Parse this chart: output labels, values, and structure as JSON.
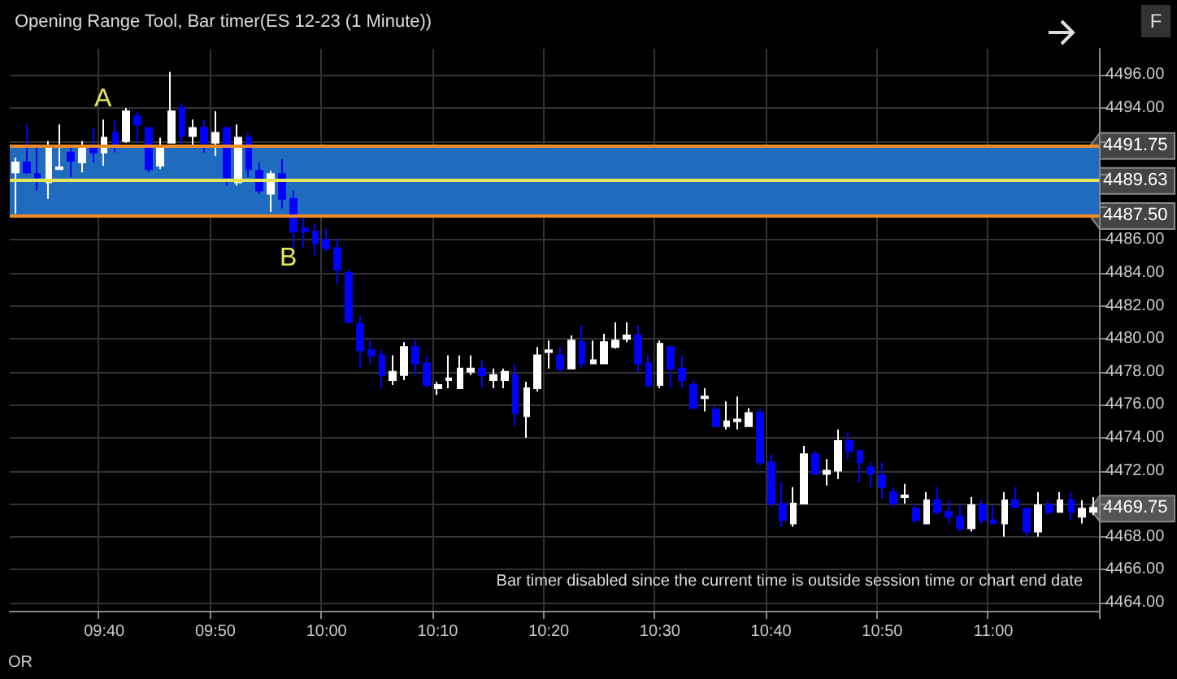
{
  "chart_data": {
    "type": "candlestick",
    "title": "Opening Range Tool, Bar timer(ES 12-23 (1 Minute))",
    "categories": [
      null,
      null,
      null,
      null,
      null,
      null,
      null,
      null,
      "09:40",
      null,
      null,
      null,
      null,
      null,
      null,
      null,
      null,
      null,
      "09:50",
      null,
      null,
      null,
      null,
      null,
      null,
      null,
      null,
      null,
      "10:00",
      null,
      null,
      null,
      null,
      null,
      null,
      null,
      null,
      null,
      "10:10",
      null,
      null,
      null,
      null,
      null,
      null,
      null,
      null,
      null,
      "10:20",
      null,
      null,
      null,
      null,
      null,
      null,
      null,
      null,
      null,
      "10:30",
      null,
      null,
      null,
      null,
      null,
      null,
      null,
      null,
      null,
      "10:40",
      null,
      null,
      null,
      null,
      null,
      null,
      null,
      null,
      null,
      "10:50",
      null,
      null,
      null,
      null,
      null,
      null,
      null,
      null,
      null,
      "11:00",
      null,
      null,
      null,
      null,
      null,
      null,
      null,
      null,
      null
    ],
    "ohlc": [
      [
        4490.1,
        4491.0,
        4487.6,
        4490.7
      ],
      [
        4490.7,
        4493.0,
        4490.0,
        4490.1
      ],
      [
        4490.0,
        4491.7,
        4489.0,
        4489.8
      ],
      [
        4489.5,
        4492.0,
        4488.5,
        4491.6
      ],
      [
        4490.3,
        4493.0,
        4490.3,
        4490.4
      ],
      [
        4491.3,
        4491.6,
        4489.8,
        4490.8
      ],
      [
        4490.7,
        4492.0,
        4490.1,
        4491.6
      ],
      [
        4491.6,
        4492.8,
        4490.7,
        4491.3
      ],
      [
        4491.3,
        4493.3,
        4490.5,
        4492.2
      ],
      [
        4492.5,
        4493.3,
        4491.3,
        4491.8
      ],
      [
        4492.0,
        4494.0,
        4491.9,
        4493.8
      ],
      [
        4493.5,
        4493.8,
        4491.9,
        4493.0
      ],
      [
        4492.8,
        4492.8,
        4490.1,
        4490.3
      ],
      [
        4490.5,
        4492.2,
        4490.3,
        4491.6
      ],
      [
        4491.9,
        4496.2,
        4491.9,
        4493.8
      ],
      [
        4494.0,
        4494.3,
        4491.6,
        4492.3
      ],
      [
        4492.3,
        4493.3,
        4491.6,
        4492.8
      ],
      [
        4492.8,
        4493.3,
        4491.3,
        4491.9
      ],
      [
        4491.9,
        4493.8,
        4491.1,
        4492.5
      ],
      [
        4492.8,
        4492.8,
        4489.3,
        4489.8
      ],
      [
        4489.5,
        4493.0,
        4489.3,
        4492.2
      ],
      [
        4492.2,
        4492.5,
        4489.8,
        4490.3
      ],
      [
        4490.2,
        4490.7,
        4488.8,
        4489.0
      ],
      [
        4488.8,
        4490.2,
        4487.7,
        4490.0
      ],
      [
        4490.0,
        4490.9,
        4487.9,
        4488.5
      ],
      [
        4488.5,
        4489.0,
        4485.5,
        4486.5
      ],
      [
        4486.7,
        4487.5,
        4485.5,
        4486.5
      ],
      [
        4486.5,
        4487.0,
        4485.0,
        4485.8
      ],
      [
        4486.0,
        4486.7,
        4485.3,
        4485.5
      ],
      [
        4485.5,
        4486.1,
        4483.3,
        4484.2
      ],
      [
        4484.0,
        4484.2,
        4481.0,
        4481.0
      ],
      [
        4480.9,
        4481.4,
        4478.2,
        4479.3
      ],
      [
        4479.3,
        4479.9,
        4478.5,
        4479.0
      ],
      [
        4479.0,
        4479.3,
        4477.0,
        4477.8
      ],
      [
        4477.5,
        4479.0,
        4477.2,
        4478.0
      ],
      [
        4477.8,
        4479.8,
        4477.5,
        4479.5
      ],
      [
        4479.5,
        4479.9,
        4477.8,
        4478.5
      ],
      [
        4478.5,
        4479.0,
        4477.0,
        4477.2
      ],
      [
        4477.0,
        4477.4,
        4476.6,
        4477.2
      ],
      [
        4477.5,
        4479.0,
        4477.0,
        4477.6
      ],
      [
        4477.0,
        4479.0,
        4477.0,
        4478.2
      ],
      [
        4478.0,
        4479.0,
        4477.8,
        4478.2
      ],
      [
        4478.2,
        4478.7,
        4477.0,
        4477.8
      ],
      [
        4477.5,
        4478.2,
        4477.0,
        4477.8
      ],
      [
        4477.5,
        4478.2,
        4477.0,
        4478.0
      ],
      [
        4477.8,
        4478.5,
        4474.7,
        4475.5
      ],
      [
        4475.3,
        4477.4,
        4474.0,
        4477.0
      ],
      [
        4477.0,
        4479.5,
        4476.8,
        4479.0
      ],
      [
        4479.2,
        4479.9,
        4478.2,
        4479.3
      ],
      [
        4479.0,
        4479.5,
        4478.0,
        4478.2
      ],
      [
        4478.2,
        4480.2,
        4478.2,
        4479.9
      ],
      [
        4479.8,
        4480.8,
        4478.2,
        4478.5
      ],
      [
        4478.5,
        4479.9,
        4478.5,
        4478.7
      ],
      [
        4478.5,
        4480.3,
        4478.5,
        4479.8
      ],
      [
        4479.5,
        4481.0,
        4479.4,
        4479.9
      ],
      [
        4480.0,
        4481.0,
        4479.8,
        4480.2
      ],
      [
        4480.2,
        4480.8,
        4478.0,
        4478.5
      ],
      [
        4478.5,
        4479.0,
        4477.0,
        4477.2
      ],
      [
        4477.2,
        4479.9,
        4477.0,
        4479.7
      ],
      [
        4479.5,
        4479.5,
        4477.0,
        4478.2
      ],
      [
        4478.2,
        4479.0,
        4477.0,
        4477.5
      ],
      [
        4477.2,
        4477.5,
        4475.8,
        4475.8
      ],
      [
        4476.4,
        4477.0,
        4475.6,
        4476.5
      ],
      [
        4475.7,
        4475.9,
        4474.7,
        4474.7
      ],
      [
        4474.7,
        4476.2,
        4474.5,
        4475.0
      ],
      [
        4475.0,
        4476.5,
        4474.5,
        4475.1
      ],
      [
        4474.7,
        4475.8,
        4474.7,
        4475.5
      ],
      [
        4475.5,
        4475.8,
        4472.3,
        4472.5
      ],
      [
        4472.5,
        4473.0,
        4469.8,
        4470.0
      ],
      [
        4470.0,
        4471.3,
        4468.6,
        4469.0
      ],
      [
        4468.8,
        4471.0,
        4468.6,
        4470.0
      ],
      [
        4470.0,
        4473.5,
        4470.0,
        4473.0
      ],
      [
        4473.0,
        4473.2,
        4471.8,
        4471.8
      ],
      [
        4471.8,
        4472.7,
        4471.1,
        4472.0
      ],
      [
        4472.0,
        4474.5,
        4471.5,
        4473.8
      ],
      [
        4473.8,
        4474.3,
        4472.7,
        4473.2
      ],
      [
        4473.2,
        4473.2,
        4471.3,
        4472.5
      ],
      [
        4472.2,
        4472.5,
        4471.0,
        4471.8
      ],
      [
        4471.7,
        4472.5,
        4470.3,
        4471.0
      ],
      [
        4470.7,
        4471.0,
        4469.8,
        4470.0
      ],
      [
        4470.4,
        4471.2,
        4470.0,
        4470.5
      ],
      [
        4469.7,
        4470.0,
        4468.8,
        4469.0
      ],
      [
        4468.8,
        4470.7,
        4468.8,
        4470.2
      ],
      [
        4470.2,
        4471.0,
        4469.3,
        4469.5
      ],
      [
        4469.5,
        4470.2,
        4468.8,
        4469.2
      ],
      [
        4469.2,
        4469.9,
        4468.3,
        4468.5
      ],
      [
        4468.5,
        4470.4,
        4468.3,
        4469.9
      ],
      [
        4469.9,
        4470.2,
        4468.8,
        4469.0
      ],
      [
        4469.0,
        4469.9,
        4468.8,
        4468.8
      ],
      [
        4468.8,
        4470.7,
        4468.0,
        4470.2
      ],
      [
        4470.2,
        4471.0,
        4469.8,
        4469.8
      ],
      [
        4469.7,
        4469.7,
        4468.0,
        4468.3
      ],
      [
        4468.3,
        4470.7,
        4468.0,
        4469.9
      ],
      [
        4469.9,
        4470.2,
        4469.3,
        4469.5
      ],
      [
        4469.5,
        4470.7,
        4469.5,
        4470.2
      ],
      [
        4470.2,
        4470.7,
        4469.0,
        4469.5
      ],
      [
        4469.2,
        4470.2,
        4468.8,
        4469.7
      ],
      [
        4469.5,
        4470.4,
        4469.3,
        4469.75
      ]
    ],
    "colors": [
      "#ffffff",
      "#0000ff",
      "#0000ff",
      "#ffffff",
      "#ffffff",
      "#0000ff",
      "#ffffff",
      "#0000ff",
      "#ffffff",
      "#0000ff",
      "#ffffff",
      "#0000ff",
      "#0000ff",
      "#ffffff",
      "#ffffff",
      "#0000ff",
      "#ffffff",
      "#0000ff",
      "#ffffff",
      "#0000ff",
      "#ffffff",
      "#0000ff",
      "#0000ff",
      "#ffffff",
      "#0000ff",
      "#0000ff",
      "#0000ff",
      "#0000ff",
      "#0000ff",
      "#0000ff",
      "#0000ff",
      "#0000ff",
      "#0000ff",
      "#0000ff",
      "#ffffff",
      "#ffffff",
      "#0000ff",
      "#0000ff",
      "#ffffff",
      "#ffffff",
      "#ffffff",
      "#ffffff",
      "#0000ff",
      "#ffffff",
      "#ffffff",
      "#0000ff",
      "#ffffff",
      "#ffffff",
      "#ffffff",
      "#0000ff",
      "#ffffff",
      "#0000ff",
      "#ffffff",
      "#ffffff",
      "#ffffff",
      "#ffffff",
      "#0000ff",
      "#0000ff",
      "#ffffff",
      "#0000ff",
      "#0000ff",
      "#0000ff",
      "#ffffff",
      "#0000ff",
      "#ffffff",
      "#ffffff",
      "#ffffff",
      "#0000ff",
      "#0000ff",
      "#0000ff",
      "#ffffff",
      "#ffffff",
      "#0000ff",
      "#ffffff",
      "#ffffff",
      "#0000ff",
      "#0000ff",
      "#0000ff",
      "#0000ff",
      "#0000ff",
      "#ffffff",
      "#0000ff",
      "#ffffff",
      "#0000ff",
      "#0000ff",
      "#0000ff",
      "#ffffff",
      "#0000ff",
      "#0000ff",
      "#ffffff",
      "#0000ff",
      "#0000ff",
      "#ffffff",
      "#0000ff",
      "#ffffff",
      "#0000ff",
      "#ffffff",
      "#ffffff"
    ],
    "ylim": [
      4463.5,
      4497.6
    ],
    "yticks": [
      {
        "value": 4464,
        "label": "4464.00"
      },
      {
        "value": 4466,
        "label": "4466.00"
      },
      {
        "value": 4468,
        "label": "4468.00"
      },
      {
        "value": 4470,
        "label": null
      },
      {
        "value": 4472,
        "label": "4472.00"
      },
      {
        "value": 4474,
        "label": "4474.00"
      },
      {
        "value": 4476,
        "label": "4476.00"
      },
      {
        "value": 4478,
        "label": "4478.00"
      },
      {
        "value": 4480,
        "label": "4480.00"
      },
      {
        "value": 4482,
        "label": "4482.00"
      },
      {
        "value": 4484,
        "label": "4484.00"
      },
      {
        "value": 4486,
        "label": "4486.00"
      },
      {
        "value": 4488,
        "label": null
      },
      {
        "value": 4490,
        "label": null
      },
      {
        "value": 4492,
        "label": null
      },
      {
        "value": 4494,
        "label": "4494.00"
      },
      {
        "value": 4496,
        "label": "4496.00"
      }
    ],
    "grid": true,
    "bands": [
      {
        "axis": "y",
        "from": 4487.5,
        "to": 4491.75,
        "color": "#1f6cbf"
      }
    ],
    "ref_lines": [
      {
        "axis": "y",
        "value": 4491.75,
        "label": "4491.75",
        "color": "#f08a24"
      },
      {
        "axis": "y",
        "value": 4489.63,
        "label": "4489.63",
        "color": "#e6e65a"
      },
      {
        "axis": "y",
        "value": 4487.5,
        "label": "4487.50",
        "color": "#f08a24"
      }
    ],
    "annotations": [
      "A",
      "B",
      "4469.75",
      "Bar timer disabled since the current time is outside session time or chart end date",
      "OR",
      "F"
    ]
  }
}
